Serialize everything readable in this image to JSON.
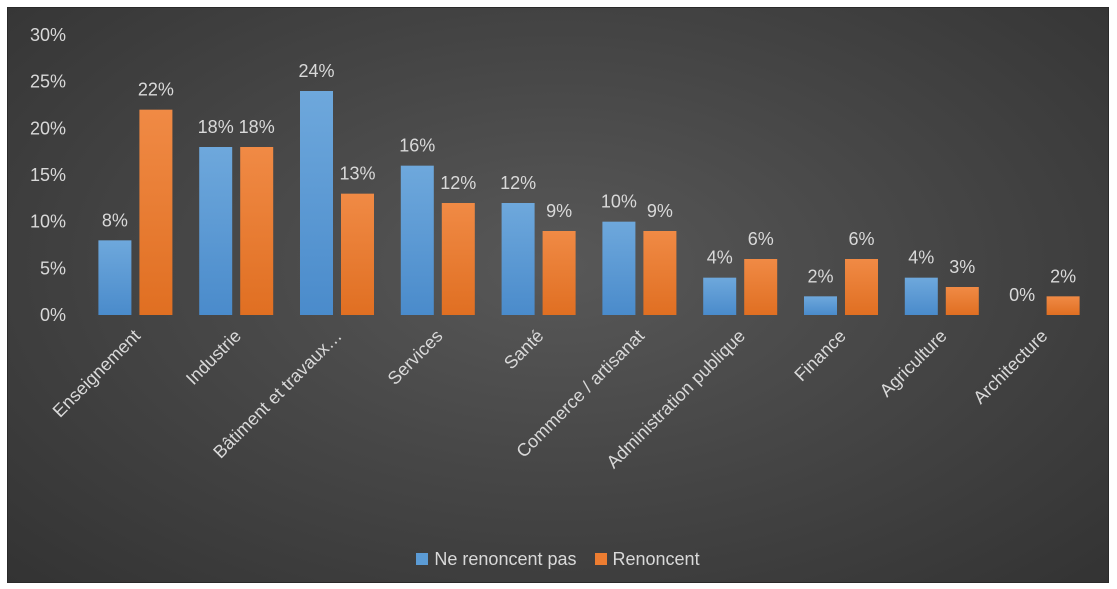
{
  "chart_data": {
    "type": "bar",
    "categories": [
      "Enseignement",
      "Industrie",
      "Bâtiment et travaux…",
      "Services",
      "Santé",
      "Commerce / artisanat",
      "Administration publique",
      "Finance",
      "Agriculture",
      "Architecture"
    ],
    "series": [
      {
        "name": "Ne renoncent pas",
        "color": "#5b9bd5",
        "values": [
          8,
          18,
          24,
          16,
          12,
          10,
          4,
          2,
          4,
          0
        ],
        "labels": [
          "8%",
          "18%",
          "24%",
          "16%",
          "12%",
          "10%",
          "4%",
          "2%",
          "4%",
          "0%"
        ]
      },
      {
        "name": "Renoncent",
        "color": "#ed7d31",
        "values": [
          22,
          18,
          13,
          12,
          9,
          9,
          6,
          6,
          3,
          2
        ],
        "labels": [
          "22%",
          "18%",
          "13%",
          "12%",
          "9%",
          "9%",
          "6%",
          "6%",
          "3%",
          "2%"
        ]
      }
    ],
    "yticks": [
      "0%",
      "5%",
      "10%",
      "15%",
      "20%",
      "25%",
      "30%"
    ],
    "ylim": [
      0,
      30
    ],
    "grid": false,
    "legend_position": "bottom",
    "title": "",
    "xlabel": "",
    "ylabel": ""
  }
}
